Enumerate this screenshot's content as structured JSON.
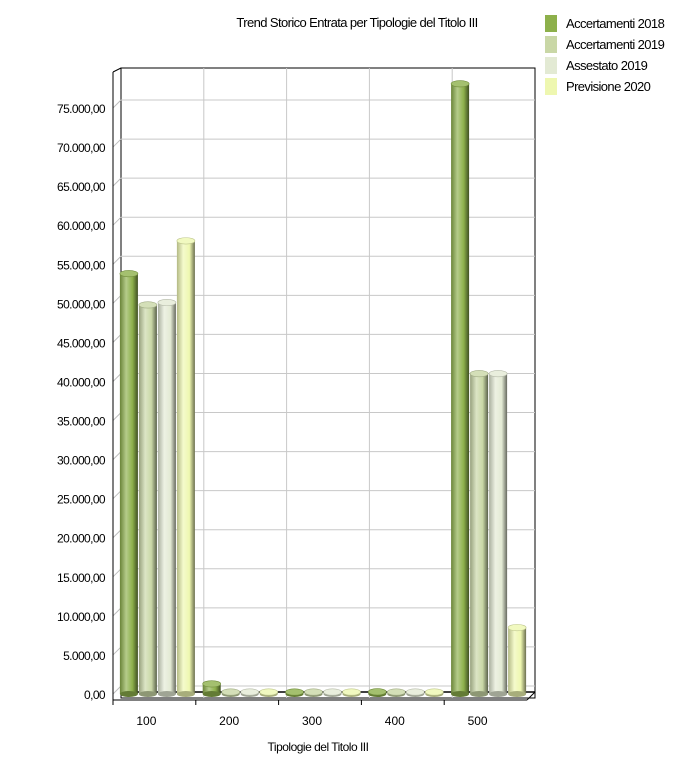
{
  "chart_data": {
    "type": "bar",
    "title": "Trend Storico Entrata per Tipologie del Titolo III",
    "xlabel": "Tipologie del Titolo III",
    "ylabel": "",
    "categories": [
      "100",
      "200",
      "300",
      "400",
      "500"
    ],
    "series": [
      {
        "name": "Accertamenti 2018",
        "values": [
          53800,
          1300,
          250,
          280,
          78100
        ]
      },
      {
        "name": "Accertamenti 2019",
        "values": [
          49800,
          200,
          200,
          200,
          41000
        ]
      },
      {
        "name": "Assestato 2019",
        "values": [
          50100,
          200,
          200,
          200,
          41000
        ]
      },
      {
        "name": "Previsione 2020",
        "values": [
          58000,
          200,
          200,
          200,
          8500
        ]
      }
    ],
    "ylim": [
      0,
      80000
    ],
    "yticks": [
      0,
      5000,
      10000,
      15000,
      20000,
      25000,
      30000,
      35000,
      40000,
      45000,
      50000,
      55000,
      60000,
      65000,
      70000,
      75000
    ],
    "ytick_labels": [
      "0,00",
      "5.000,00",
      "10.000,00",
      "15.000,00",
      "20.000,00",
      "25.000,00",
      "30.000,00",
      "35.000,00",
      "40.000,00",
      "45.000,00",
      "50.000,00",
      "55.000,00",
      "60.000,00",
      "65.000,00",
      "70.000,00",
      "75.000,00"
    ],
    "grid": true,
    "legend": "top-right",
    "colors": {
      "Accertamenti 2018": "#8db04b",
      "Accertamenti 2019": "#c9d7a6",
      "Assestato 2019": "#e3ead4",
      "Previsione 2020": "#eef7b0"
    }
  }
}
